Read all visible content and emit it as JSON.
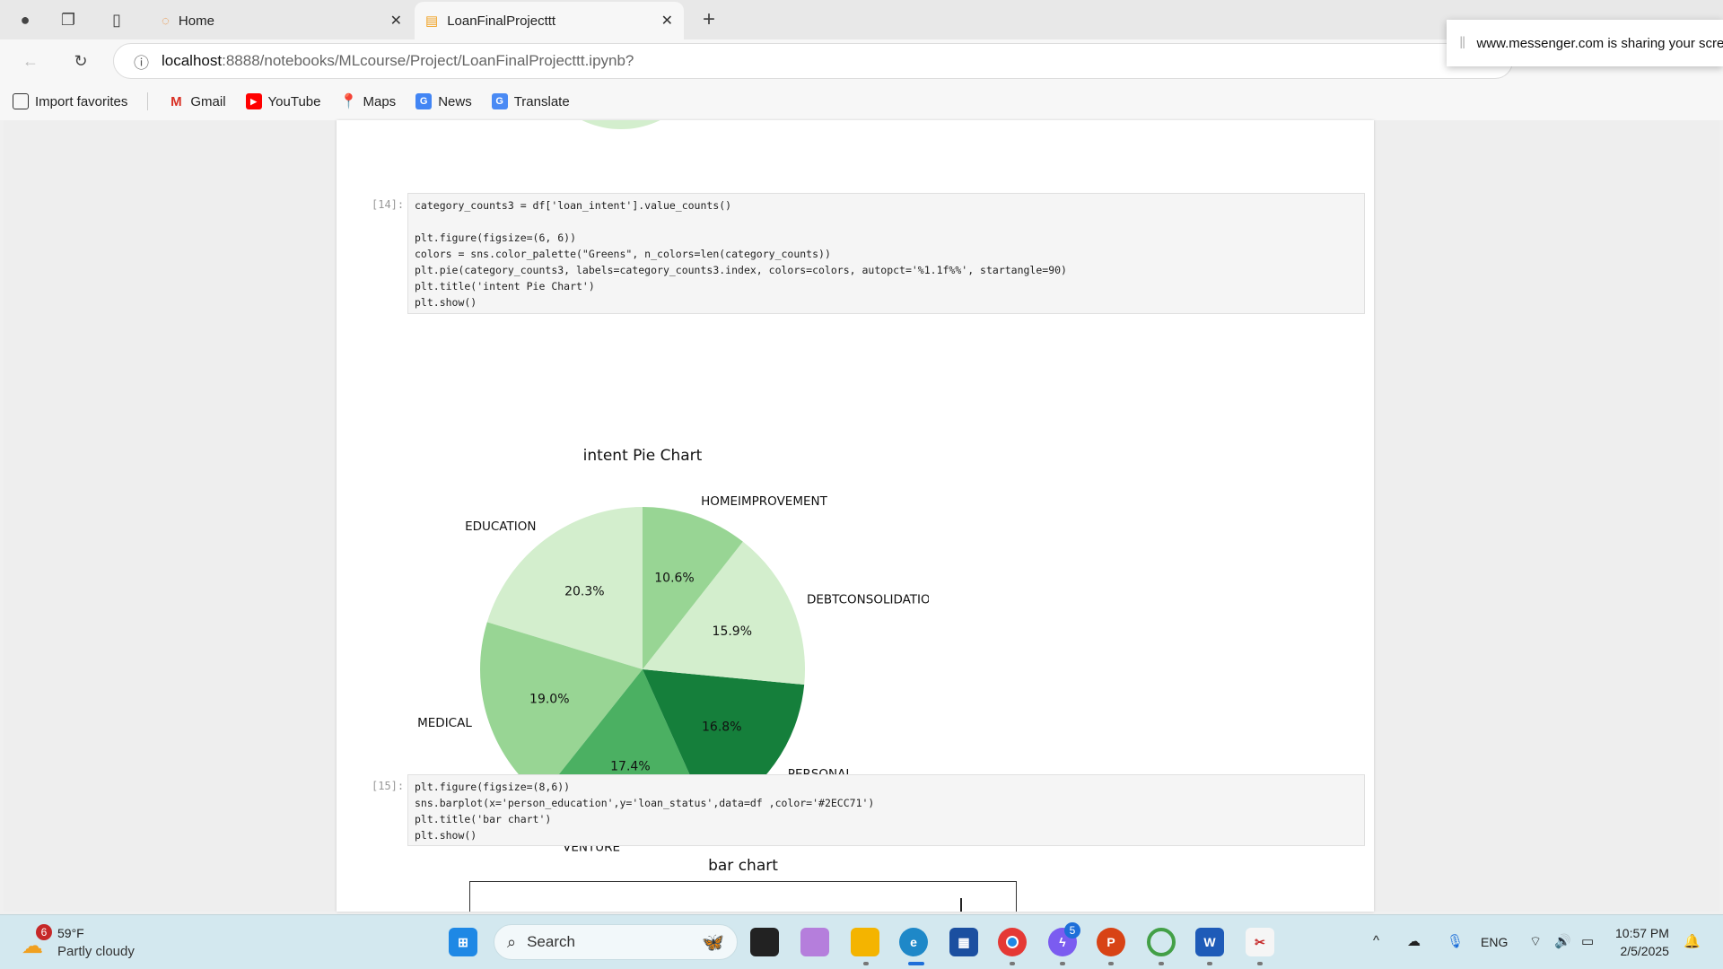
{
  "browser": {
    "tabs": [
      {
        "label": "Home",
        "active": false
      },
      {
        "label": "LoanFinalProjecttt",
        "active": true
      }
    ],
    "url_host": "localhost",
    "url_path": ":8888/notebooks/MLcourse/Project/LoanFinalProjecttt.ipynb?",
    "bookmarks": [
      {
        "label": "Import favorites",
        "icon": "import-icon"
      },
      {
        "label": "Gmail",
        "icon": "gmail-icon"
      },
      {
        "label": "YouTube",
        "icon": "youtube-icon"
      },
      {
        "label": "Maps",
        "icon": "maps-icon"
      },
      {
        "label": "News",
        "icon": "news-icon"
      },
      {
        "label": "Translate",
        "icon": "translate-icon"
      }
    ],
    "share_notice": "www.messenger.com is sharing your screen"
  },
  "notebook": {
    "cells": [
      {
        "prompt": "[14]:",
        "lines": [
          "category_counts3 = df['loan_intent'].value_counts()",
          "",
          "plt.figure(figsize=(6, 6))",
          "colors = sns.color_palette(\"Greens\", n_colors=len(category_counts))",
          "plt.pie(category_counts3, labels=category_counts3.index, colors=colors, autopct='%1.1f%%', startangle=90)",
          "plt.title('intent Pie Chart')",
          "plt.show()"
        ]
      },
      {
        "prompt": "[15]:",
        "lines": [
          "plt.figure(figsize=(8,6))",
          "sns.barplot(x='person_education',y='loan_status',data=df ,color='#2ECC71')",
          "plt.title('bar chart')",
          "plt.show()"
        ]
      }
    ]
  },
  "chart_data": [
    {
      "type": "pie",
      "title": "intent Pie Chart",
      "startangle": 90,
      "labels": [
        "EDUCATION",
        "MEDICAL",
        "VENTURE",
        "PERSONAL",
        "DEBTCONSOLIDATION",
        "HOMEIMPROVEMENT"
      ],
      "values": [
        20.3,
        19.0,
        17.4,
        16.8,
        15.9,
        10.6
      ],
      "pct_labels": [
        "20.3%",
        "19.0%",
        "17.4%",
        "16.8%",
        "15.9%",
        "10.6%"
      ],
      "colors": [
        "#d3eecd",
        "#98d594",
        "#4bb062",
        "#157f3b",
        "#d3eecd",
        "#98d594"
      ]
    },
    {
      "type": "bar",
      "title": "bar chart",
      "color": "#2ECC71"
    }
  ],
  "taskbar": {
    "weather_temp": "59°F",
    "weather_desc": "Partly cloudy",
    "weather_badge": "6",
    "search_placeholder": "Search",
    "messenger_badge": "5",
    "lang": "ENG",
    "time": "10:57 PM",
    "date": "2/5/2025"
  }
}
